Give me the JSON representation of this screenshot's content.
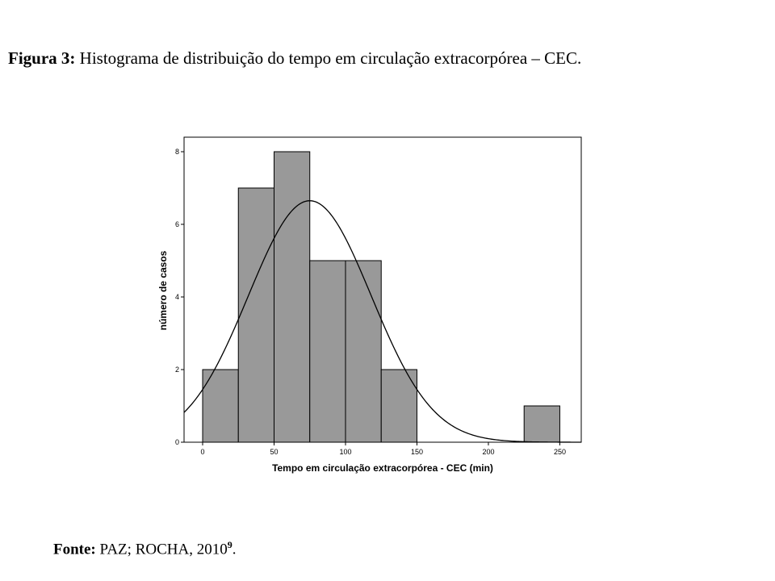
{
  "caption": {
    "label": "Figura 3:",
    "text": "Histograma de distribuição do tempo em circulação extracorpórea – CEC."
  },
  "source": {
    "label": "Fonte:",
    "text": "PAZ; ROCHA, 2010",
    "ref": "9",
    "end": "."
  },
  "chart_data": {
    "type": "bar",
    "subtype": "histogram",
    "xlabel": "Tempo em circulação extracorpórea - CEC (min)",
    "ylabel": "número de casos",
    "xlim": [
      -13,
      265
    ],
    "ylim": [
      0,
      8.4
    ],
    "xticks": [
      0,
      50,
      100,
      150,
      200,
      250
    ],
    "yticks": [
      0,
      2,
      4,
      6,
      8
    ],
    "bins": [
      {
        "start": 0,
        "end": 25,
        "count": 2
      },
      {
        "start": 25,
        "end": 50,
        "count": 7
      },
      {
        "start": 50,
        "end": 75,
        "count": 8
      },
      {
        "start": 75,
        "end": 100,
        "count": 5
      },
      {
        "start": 100,
        "end": 125,
        "count": 5
      },
      {
        "start": 125,
        "end": 150,
        "count": 2
      },
      {
        "start": 225,
        "end": 250,
        "count": 1
      }
    ],
    "normal_curve": {
      "mean": 75,
      "sd": 43,
      "peak": 6.65
    },
    "grid": false,
    "colors": {
      "bar_fill": "#999999",
      "bar_stroke": "#000000",
      "curve": "#000000",
      "frame": "#000000"
    }
  }
}
